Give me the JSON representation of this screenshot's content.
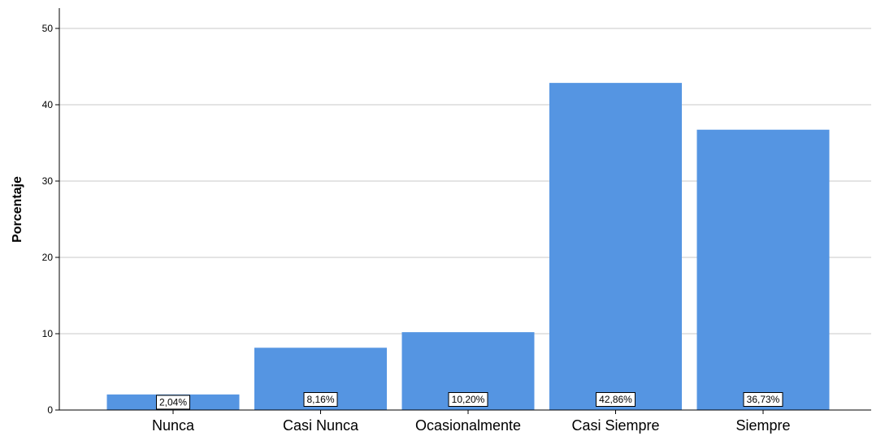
{
  "chart_data": {
    "type": "bar",
    "categories": [
      "Nunca",
      "Casi Nunca",
      "Ocasionalmente",
      "Casi Siempre",
      "Siempre"
    ],
    "values": [
      2.04,
      8.16,
      10.2,
      42.86,
      36.73
    ],
    "data_labels": [
      "2,04%",
      "8,16%",
      "10,20%",
      "42,86%",
      "36,73%"
    ],
    "ylabel": "Porcentaje",
    "xlabel": "",
    "ylim": [
      0,
      50
    ],
    "yticks": [
      0,
      10,
      20,
      30,
      40,
      50
    ],
    "grid": true,
    "bar_color": "#5595e2"
  }
}
